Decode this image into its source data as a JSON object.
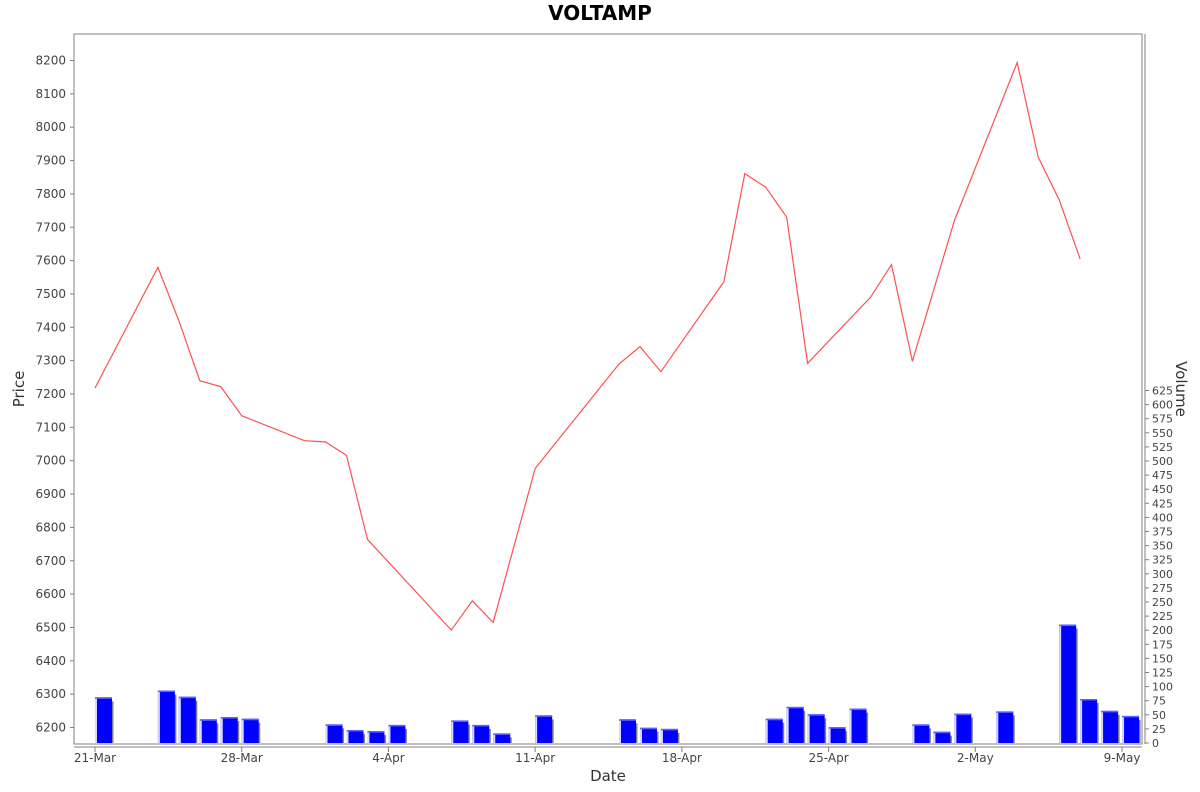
{
  "chart_data": {
    "type": "line",
    "title": "VOLTAMP",
    "xlabel": "Date",
    "ylabel": "Price",
    "y2label": "Volume",
    "x_ticks": [
      "21-Mar",
      "28-Mar",
      "4-Apr",
      "11-Apr",
      "18-Apr",
      "25-Apr",
      "2-May",
      "9-May"
    ],
    "price_axis": {
      "ylim": [
        6150,
        8250
      ],
      "ticks": [
        6200,
        6300,
        6400,
        6500,
        6600,
        6700,
        6800,
        6900,
        7000,
        7100,
        7200,
        7300,
        7400,
        7500,
        7600,
        7700,
        7800,
        7900,
        8000,
        8100,
        8200
      ]
    },
    "volume_axis": {
      "ylim": [
        0,
        625
      ],
      "ticks": [
        0,
        25,
        50,
        75,
        100,
        125,
        150,
        175,
        200,
        225,
        250,
        275,
        300,
        325,
        350,
        375,
        400,
        425,
        450,
        475,
        500,
        525,
        550,
        575,
        600,
        625
      ]
    },
    "grid": false,
    "colors": {
      "price_line": "#ff5050",
      "volume_bar": "#0000ff",
      "volume_shadow": "#808080",
      "frame": "#808080"
    },
    "series": [
      {
        "kind": "line",
        "axis": "price",
        "x": [
          "2024-03-21",
          "2024-03-24",
          "2024-03-25",
          "2024-03-26",
          "2024-03-27",
          "2024-03-28",
          "2024-03-31",
          "2024-04-01",
          "2024-04-02",
          "2024-04-03",
          "2024-04-07",
          "2024-04-08",
          "2024-04-09",
          "2024-04-11",
          "2024-04-15",
          "2024-04-16",
          "2024-04-17",
          "2024-04-20",
          "2024-04-21",
          "2024-04-22",
          "2024-04-23",
          "2024-04-24",
          "2024-04-27",
          "2024-04-28",
          "2024-04-29",
          "2024-05-01",
          "2024-05-04",
          "2024-05-05",
          "2024-05-06",
          "2024-05-07"
        ],
        "values": [
          7218,
          7580,
          7420,
          7240,
          7222,
          7135,
          7060,
          7056,
          7016,
          6764,
          6492,
          6580,
          6515,
          6977,
          7290,
          7342,
          7267,
          7536,
          7861,
          7820,
          7730,
          7292,
          7490,
          7588,
          7298,
          7720,
          8194,
          7910,
          7782,
          7605
        ]
      },
      {
        "kind": "bar",
        "axis": "volume",
        "x": [
          "2024-03-21",
          "2024-03-24",
          "2024-03-25",
          "2024-03-26",
          "2024-03-27",
          "2024-03-28",
          "2024-04-01",
          "2024-04-02",
          "2024-04-03",
          "2024-04-04",
          "2024-04-07",
          "2024-04-08",
          "2024-04-09",
          "2024-04-11",
          "2024-04-15",
          "2024-04-16",
          "2024-04-17",
          "2024-04-22",
          "2024-04-23",
          "2024-04-24",
          "2024-04-25",
          "2024-04-26",
          "2024-04-29",
          "2024-04-30",
          "2024-05-01",
          "2024-05-03",
          "2024-05-06",
          "2024-05-07",
          "2024-05-08",
          "2024-05-09"
        ],
        "values": [
          81,
          93,
          82,
          42,
          46,
          43,
          33,
          23,
          21,
          32,
          40,
          32,
          17,
          49,
          42,
          27,
          25,
          43,
          64,
          51,
          28,
          61,
          33,
          20,
          52,
          56,
          210,
          78,
          57,
          48
        ]
      }
    ]
  }
}
